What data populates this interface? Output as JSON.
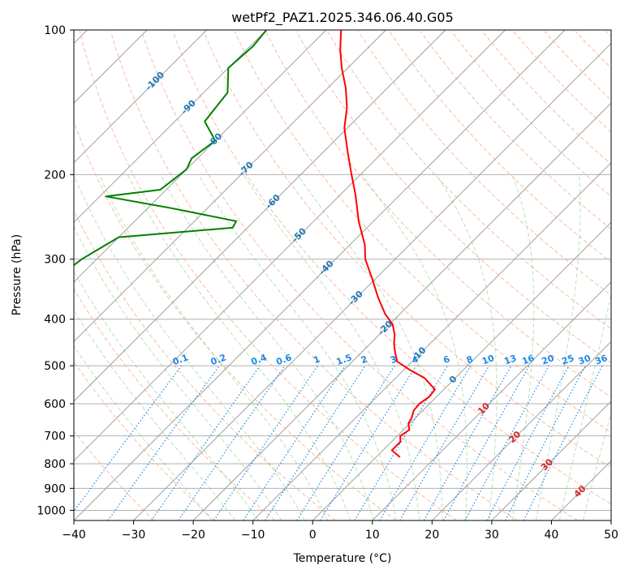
{
  "chart_data": {
    "type": "line",
    "title": "wetPf2_PAZ1.2025.346.06.40.G05",
    "xlabel": "Temperature (°C)",
    "ylabel": "Pressure (hPa)",
    "xlim": [
      -40,
      50
    ],
    "ylim": [
      1050,
      100
    ],
    "skew_degrees": 45,
    "grid": true,
    "x_ticks": [
      "−40",
      "−30",
      "−20",
      "−10",
      "0",
      "10",
      "20",
      "30",
      "40",
      "50"
    ],
    "x_tick_values": [
      -40,
      -30,
      -20,
      -10,
      0,
      10,
      20,
      30,
      40,
      50
    ],
    "y_ticks": [
      "100",
      "200",
      "300",
      "400",
      "500",
      "600",
      "700",
      "800",
      "900",
      "1000"
    ],
    "y_tick_values": [
      100,
      200,
      300,
      400,
      500,
      600,
      700,
      800,
      900,
      1000
    ],
    "colors": {
      "temperature": "#ff0000",
      "dewpoint": "#008000",
      "dry_adiabat": "#f4a582",
      "moist_adiabat": "#66bb66",
      "mixing_ratio": "#1e88e5",
      "isotherm": "#a0a0a0",
      "isotherm_label": "#1f77b4",
      "isotherm_label_warm": "#d62728",
      "mixing_label": "#1e88e5",
      "sat_curve": "#d2b48c",
      "grid": "#b0b0b0"
    },
    "isotherm_labels": [
      {
        "text": "-100",
        "value": -100,
        "pressure": 128
      },
      {
        "text": "-90",
        "value": -90,
        "pressure": 145
      },
      {
        "text": "-80",
        "value": -80,
        "pressure": 170
      },
      {
        "text": "-70",
        "value": -70,
        "pressure": 195
      },
      {
        "text": "-60",
        "value": -60,
        "pressure": 228
      },
      {
        "text": "-50",
        "value": -50,
        "pressure": 268
      },
      {
        "text": "-40",
        "value": -40,
        "pressure": 313
      },
      {
        "text": "-30",
        "value": -30,
        "pressure": 362
      },
      {
        "text": "-20",
        "value": -20,
        "pressure": 418
      },
      {
        "text": "-10",
        "value": -10,
        "pressure": 474
      },
      {
        "text": "0",
        "value": 0,
        "pressure": 535
      },
      {
        "text": "10",
        "value": 10,
        "pressure": 615
      },
      {
        "text": "20",
        "value": 20,
        "pressure": 705
      },
      {
        "text": "30",
        "value": 30,
        "pressure": 805
      },
      {
        "text": "40",
        "value": 40,
        "pressure": 915
      }
    ],
    "mixing_ratio_values": [
      "0.1",
      "0.2",
      "0.4",
      "0.6",
      "1",
      "1.5",
      "2",
      "3",
      "4",
      "6",
      "8",
      "10",
      "13",
      "16",
      "20",
      "25",
      "30",
      "36"
    ],
    "series": [
      {
        "name": "Temperature",
        "pressure": [
          100,
          110,
          120,
          132,
          145,
          160,
          180,
          200,
          220,
          250,
          280,
          300,
          330,
          360,
          390,
          410,
          430,
          450,
          470,
          490,
          510,
          530,
          560,
          580,
          600,
          620,
          640,
          660,
          680,
          700,
          720,
          750,
          775
        ],
        "values": [
          -77.5,
          -74.3,
          -71,
          -67,
          -63.5,
          -60.5,
          -55.8,
          -51.5,
          -47.5,
          -42.5,
          -37.5,
          -35,
          -30.5,
          -26.5,
          -22.5,
          -19.5,
          -17.5,
          -16,
          -14.3,
          -12.5,
          -9,
          -5.2,
          -1.5,
          -1.2,
          -1.7,
          -1.5,
          -0.7,
          -0.2,
          1,
          0.5,
          1.5,
          1.5,
          4
        ]
      },
      {
        "name": "Dewpoint",
        "pressure": [
          100,
          108,
          120,
          135,
          155,
          170,
          185,
          195,
          205,
          215,
          222,
          235,
          250,
          258,
          270,
          300,
          330,
          360,
          380,
          400,
          430,
          470,
          480,
          500,
          540,
          620,
          660,
          680,
          690,
          700,
          710,
          715,
          720,
          725,
          730,
          740,
          745
        ],
        "values": [
          -90,
          -89.5,
          -90,
          -86,
          -85,
          -80,
          -81,
          -80,
          -80.5,
          -81,
          -89,
          -76,
          -63,
          -62.5,
          -80,
          -82.5,
          -83.5,
          -81,
          -85.2,
          -90,
          -92,
          -93,
          -94,
          -99,
          -102,
          -110,
          -108.2,
          -108.5,
          -109,
          -109.5,
          -114,
          -98,
          -92,
          -98,
          -110,
          -123,
          -130
        ]
      }
    ]
  }
}
